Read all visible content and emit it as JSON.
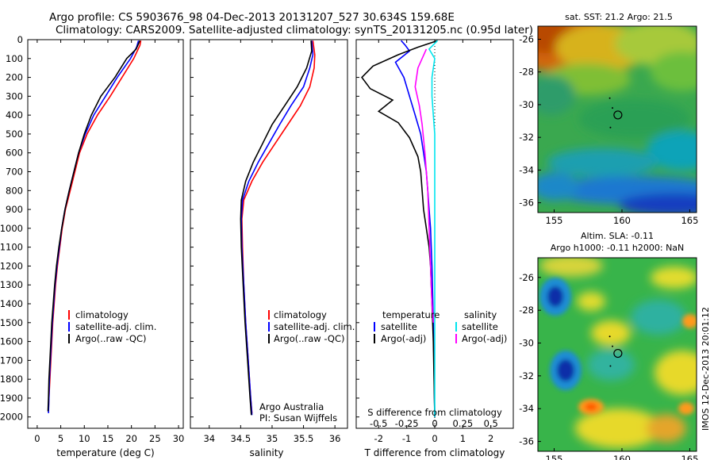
{
  "header": {
    "line1": "Argo profile: CS 5903676_98 04-Dec-2013 20131207_527 30.634S 159.68E",
    "line2": "Climatology: CARS2009. Satellite-adjusted climatology: synTS_20131205.nc (0.95d later)"
  },
  "colors": {
    "climatology": "#ff0000",
    "satellite": "#0000ff",
    "argo": "#000000",
    "s_satellite": "#00e5ee",
    "s_argo": "#ff00ff"
  },
  "chart_data": [
    {
      "type": "line",
      "panel": "temperature",
      "xlabel": "temperature (deg C)",
      "ylabel": "",
      "xlim": [
        -2,
        31
      ],
      "ylim": [
        2060,
        0
      ],
      "xticks": [
        "0",
        "5",
        "10",
        "15",
        "20",
        "25",
        "30"
      ],
      "yticks": [
        "0",
        "100",
        "200",
        "300",
        "400",
        "500",
        "600",
        "700",
        "800",
        "900",
        "1000",
        "1100",
        "1200",
        "1300",
        "1400",
        "1500",
        "1600",
        "1700",
        "1800",
        "1900",
        "2000"
      ],
      "legend": [
        "climatology",
        "satellite-adj. clim.",
        "Argo(..raw -QC)"
      ],
      "series": [
        {
          "name": "climatology",
          "color": "#ff0000",
          "points": [
            [
              22.0,
              5
            ],
            [
              21.8,
              30
            ],
            [
              20.5,
              100
            ],
            [
              18.0,
              200
            ],
            [
              15.5,
              300
            ],
            [
              12.8,
              400
            ],
            [
              10.6,
              500
            ],
            [
              9.0,
              600
            ],
            [
              8.0,
              700
            ],
            [
              7.0,
              800
            ],
            [
              6.0,
              900
            ],
            [
              5.3,
              1000
            ],
            [
              4.8,
              1100
            ],
            [
              4.3,
              1200
            ],
            [
              3.9,
              1300
            ],
            [
              3.6,
              1400
            ],
            [
              3.3,
              1500
            ],
            [
              3.1,
              1600
            ],
            [
              2.9,
              1700
            ],
            [
              2.7,
              1800
            ],
            [
              2.5,
              1900
            ],
            [
              2.4,
              1960
            ]
          ]
        },
        {
          "name": "satellite-adj. clim.",
          "color": "#0000ff",
          "points": [
            [
              21.5,
              5
            ],
            [
              21.1,
              40
            ],
            [
              19.8,
              100
            ],
            [
              17.0,
              200
            ],
            [
              14.5,
              300
            ],
            [
              12.0,
              400
            ],
            [
              10.2,
              500
            ],
            [
              8.8,
              600
            ],
            [
              7.8,
              700
            ],
            [
              6.8,
              800
            ],
            [
              5.9,
              900
            ],
            [
              5.2,
              1000
            ],
            [
              4.7,
              1100
            ],
            [
              4.2,
              1200
            ],
            [
              3.8,
              1300
            ],
            [
              3.5,
              1400
            ],
            [
              3.2,
              1500
            ],
            [
              3.0,
              1600
            ],
            [
              2.8,
              1700
            ],
            [
              2.6,
              1800
            ],
            [
              2.5,
              1900
            ],
            [
              2.4,
              1980
            ]
          ]
        },
        {
          "name": "Argo(..raw -QC)",
          "color": "#000000",
          "points": [
            [
              21.8,
              5
            ],
            [
              21.0,
              50
            ],
            [
              19.0,
              100
            ],
            [
              16.5,
              200
            ],
            [
              13.5,
              300
            ],
            [
              11.5,
              400
            ],
            [
              10.0,
              500
            ],
            [
              8.8,
              600
            ],
            [
              7.8,
              700
            ],
            [
              6.8,
              800
            ],
            [
              5.9,
              900
            ],
            [
              5.2,
              1000
            ],
            [
              4.6,
              1100
            ],
            [
              4.1,
              1200
            ],
            [
              3.7,
              1300
            ],
            [
              3.4,
              1400
            ],
            [
              3.1,
              1500
            ],
            [
              2.9,
              1600
            ],
            [
              2.7,
              1700
            ],
            [
              2.5,
              1800
            ],
            [
              2.4,
              1900
            ],
            [
              2.3,
              1970
            ]
          ]
        }
      ]
    },
    {
      "type": "line",
      "panel": "salinity",
      "xlabel": "salinity",
      "xlim": [
        33.7,
        36.2
      ],
      "ylim": [
        2060,
        0
      ],
      "xticks": [
        "34",
        "34.5",
        "35",
        "35.5",
        "36"
      ],
      "legend": [
        "climatology",
        "satellite-adj. clim.",
        "Argo(..raw -QC)"
      ],
      "annotation": [
        "Argo Australia",
        "PI: Susan Wijffels"
      ],
      "series": [
        {
          "name": "climatology",
          "color": "#ff0000",
          "points": [
            [
              35.65,
              5
            ],
            [
              35.68,
              80
            ],
            [
              35.67,
              150
            ],
            [
              35.6,
              250
            ],
            [
              35.45,
              350
            ],
            [
              35.25,
              450
            ],
            [
              35.05,
              550
            ],
            [
              34.85,
              650
            ],
            [
              34.68,
              750
            ],
            [
              34.55,
              850
            ],
            [
              34.52,
              950
            ],
            [
              34.53,
              1100
            ],
            [
              34.55,
              1300
            ],
            [
              34.58,
              1500
            ],
            [
              34.62,
              1700
            ],
            [
              34.66,
              1900
            ],
            [
              34.68,
              1980
            ]
          ]
        },
        {
          "name": "satellite-adj. clim.",
          "color": "#0000ff",
          "points": [
            [
              35.63,
              5
            ],
            [
              35.65,
              80
            ],
            [
              35.6,
              150
            ],
            [
              35.5,
              250
            ],
            [
              35.3,
              350
            ],
            [
              35.12,
              450
            ],
            [
              34.95,
              550
            ],
            [
              34.78,
              650
            ],
            [
              34.63,
              750
            ],
            [
              34.53,
              850
            ],
            [
              34.51,
              950
            ],
            [
              34.52,
              1100
            ],
            [
              34.55,
              1300
            ],
            [
              34.58,
              1500
            ],
            [
              34.62,
              1700
            ],
            [
              34.66,
              1900
            ],
            [
              34.68,
              1990
            ]
          ]
        },
        {
          "name": "Argo(..raw -QC)",
          "color": "#000000",
          "points": [
            [
              35.62,
              5
            ],
            [
              35.63,
              60
            ],
            [
              35.55,
              150
            ],
            [
              35.4,
              250
            ],
            [
              35.2,
              350
            ],
            [
              35.0,
              450
            ],
            [
              34.85,
              550
            ],
            [
              34.7,
              650
            ],
            [
              34.58,
              750
            ],
            [
              34.51,
              850
            ],
            [
              34.5,
              950
            ],
            [
              34.51,
              1100
            ],
            [
              34.54,
              1300
            ],
            [
              34.57,
              1500
            ],
            [
              34.61,
              1700
            ],
            [
              34.65,
              1900
            ],
            [
              34.67,
              1990
            ]
          ]
        }
      ]
    },
    {
      "type": "line",
      "panel": "difference",
      "xlabel": "T difference from climatology",
      "xlabel_top": "S difference from climatology",
      "xlim": [
        -2.8,
        2.8
      ],
      "ylim": [
        2060,
        0
      ],
      "xticks": [
        "-2",
        "-1",
        "0",
        "1",
        "2"
      ],
      "sticks": [
        "-0.5",
        "-0.25",
        "0",
        "0.25",
        "0.5"
      ],
      "legend_titles": [
        "temperature",
        "salinity"
      ],
      "legend": [
        "satellite",
        "Argo(-adj)",
        "satellite",
        "Argo(-adj)"
      ],
      "series": [
        {
          "name": "satellite",
          "group": "temperature",
          "color": "#0000ff",
          "points": [
            [
              -1.2,
              5
            ],
            [
              -1.05,
              30
            ],
            [
              -0.9,
              60
            ],
            [
              -1.4,
              120
            ],
            [
              -1.1,
              200
            ],
            [
              -0.9,
              300
            ],
            [
              -0.7,
              400
            ],
            [
              -0.5,
              500
            ],
            [
              -0.4,
              600
            ],
            [
              -0.3,
              700
            ],
            [
              -0.25,
              800
            ],
            [
              -0.2,
              900
            ],
            [
              -0.15,
              1000
            ],
            [
              -0.1,
              1200
            ],
            [
              -0.05,
              1500
            ],
            [
              0.0,
              2000
            ]
          ]
        },
        {
          "name": "Argo(-adj)",
          "group": "temperature",
          "color": "#000000",
          "points": [
            [
              0.1,
              5
            ],
            [
              -0.6,
              40
            ],
            [
              -1.3,
              80
            ],
            [
              -2.2,
              140
            ],
            [
              -2.6,
              200
            ],
            [
              -2.3,
              260
            ],
            [
              -1.5,
              320
            ],
            [
              -2.0,
              380
            ],
            [
              -1.3,
              440
            ],
            [
              -0.9,
              520
            ],
            [
              -0.6,
              620
            ],
            [
              -0.5,
              700
            ],
            [
              -0.45,
              800
            ],
            [
              -0.4,
              900
            ],
            [
              -0.3,
              1000
            ],
            [
              -0.2,
              1100
            ],
            [
              -0.15,
              1200
            ],
            [
              -0.1,
              1400
            ],
            [
              -0.05,
              1600
            ],
            [
              0.0,
              2000
            ]
          ]
        },
        {
          "name": "satellite",
          "group": "salinity",
          "color": "#00e5ee",
          "points": [
            [
              0.1,
              5
            ],
            [
              -0.2,
              50
            ],
            [
              0.0,
              100
            ],
            [
              -0.1,
              200
            ],
            [
              -0.1,
              300
            ],
            [
              -0.05,
              400
            ],
            [
              0.0,
              500
            ],
            [
              0.0,
              700
            ],
            [
              0.0,
              1000
            ],
            [
              0.0,
              1500
            ],
            [
              0.0,
              2000
            ]
          ]
        },
        {
          "name": "Argo(-adj)",
          "group": "salinity",
          "color": "#ff00ff",
          "points": [
            [
              -0.3,
              50
            ],
            [
              -0.6,
              150
            ],
            [
              -0.7,
              250
            ],
            [
              -0.55,
              350
            ],
            [
              -0.45,
              450
            ],
            [
              -0.35,
              600
            ],
            [
              -0.25,
              800
            ],
            [
              -0.2,
              1000
            ],
            [
              -0.15,
              1200
            ],
            [
              -0.1,
              1400
            ],
            [
              -0.05,
              1500
            ]
          ]
        }
      ]
    },
    {
      "type": "heatmap",
      "panel": "sst_map",
      "title": "sat. SST: 21.2  Argo: 21.5",
      "xlim": [
        153.8,
        165.5
      ],
      "ylim": [
        -36.6,
        -25.2
      ],
      "xticks": [
        "155",
        "160",
        "165"
      ],
      "yticks": [
        "-26",
        "-28",
        "-30",
        "-32",
        "-34",
        "-36"
      ],
      "marker": [
        159.7,
        -30.63
      ]
    },
    {
      "type": "heatmap",
      "panel": "sla_map",
      "title_line1": "Altim. SLA: -0.11",
      "title_line2": "Argo h1000: -0.11 h2000: NaN",
      "xlim": [
        153.8,
        165.5
      ],
      "ylim": [
        -36.6,
        -24.8
      ],
      "xticks": [
        "155",
        "160",
        "165"
      ],
      "yticks": [
        "-26",
        "-28",
        "-30",
        "-32",
        "-34",
        "-36"
      ],
      "marker": [
        159.7,
        -30.63
      ]
    }
  ],
  "side_label": "IMOS 12-Dec-2013 20:01:12"
}
